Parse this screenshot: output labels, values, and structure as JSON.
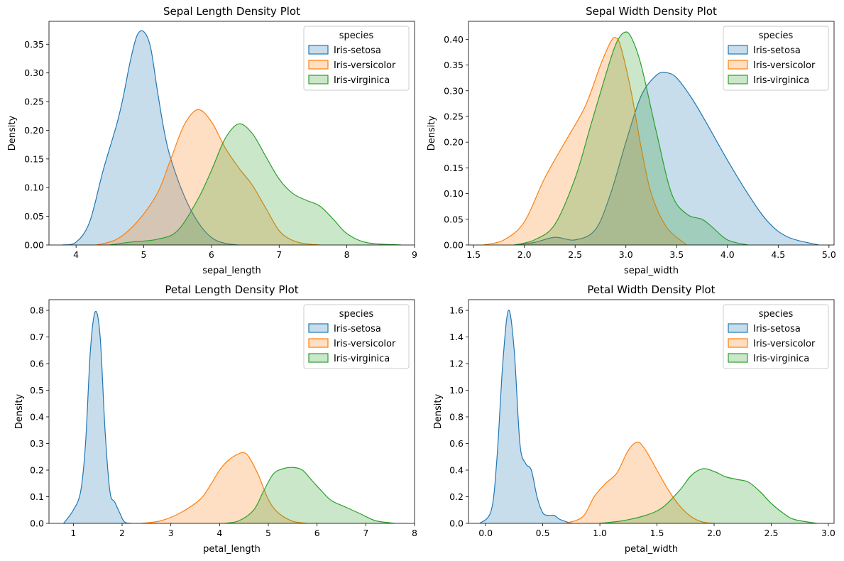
{
  "legend_title": "species",
  "chart_data": [
    {
      "type": "area",
      "title": "Sepal Length Density Plot",
      "xlabel": "sepal_length",
      "ylabel": "Density",
      "xlim": [
        3.6,
        9.0
      ],
      "ylim": [
        0,
        0.39
      ],
      "xticks": [
        "4",
        "5",
        "6",
        "7",
        "8",
        "9"
      ],
      "yticks": [
        "0.00",
        "0.05",
        "0.10",
        "0.15",
        "0.20",
        "0.25",
        "0.30",
        "0.35"
      ],
      "legend": "top-right",
      "grid": false,
      "series": [
        {
          "name": "Iris-setosa",
          "color": "#1f77b4",
          "x": [
            3.8,
            4.0,
            4.2,
            4.4,
            4.6,
            4.7,
            4.8,
            4.9,
            5.0,
            5.1,
            5.2,
            5.3,
            5.4,
            5.6,
            5.8,
            6.0,
            6.2,
            6.4
          ],
          "y": [
            0.0,
            0.005,
            0.04,
            0.13,
            0.21,
            0.26,
            0.32,
            0.365,
            0.372,
            0.345,
            0.27,
            0.2,
            0.15,
            0.085,
            0.04,
            0.013,
            0.003,
            0.0
          ]
        },
        {
          "name": "Iris-versicolor",
          "color": "#ff7f0e",
          "x": [
            4.3,
            4.6,
            4.9,
            5.2,
            5.4,
            5.6,
            5.8,
            6.0,
            6.2,
            6.4,
            6.6,
            6.8,
            7.0,
            7.2,
            7.4,
            7.6
          ],
          "y": [
            0.0,
            0.01,
            0.04,
            0.09,
            0.15,
            0.21,
            0.236,
            0.215,
            0.17,
            0.135,
            0.105,
            0.065,
            0.025,
            0.008,
            0.002,
            0.0
          ]
        },
        {
          "name": "Iris-virginica",
          "color": "#2ca02c",
          "x": [
            4.5,
            4.8,
            5.2,
            5.5,
            5.8,
            6.0,
            6.2,
            6.4,
            6.6,
            6.8,
            7.0,
            7.2,
            7.4,
            7.6,
            7.8,
            8.0,
            8.3,
            8.8
          ],
          "y": [
            0.0,
            0.005,
            0.01,
            0.025,
            0.08,
            0.13,
            0.185,
            0.211,
            0.195,
            0.155,
            0.115,
            0.09,
            0.078,
            0.068,
            0.045,
            0.02,
            0.004,
            0.0
          ]
        }
      ]
    },
    {
      "type": "area",
      "title": "Sepal Width Density Plot",
      "xlabel": "sepal_width",
      "ylabel": "Density",
      "xlim": [
        1.45,
        5.05
      ],
      "ylim": [
        0,
        0.435
      ],
      "xticks": [
        "1.5",
        "2.0",
        "2.5",
        "3.0",
        "3.5",
        "4.0",
        "4.5",
        "5.0"
      ],
      "yticks": [
        "0.00",
        "0.05",
        "0.10",
        "0.15",
        "0.20",
        "0.25",
        "0.30",
        "0.35",
        "0.40"
      ],
      "legend": "top-right",
      "grid": false,
      "series": [
        {
          "name": "Iris-setosa",
          "color": "#1f77b4",
          "x": [
            1.9,
            2.1,
            2.3,
            2.5,
            2.7,
            2.85,
            3.0,
            3.15,
            3.3,
            3.4,
            3.5,
            3.65,
            3.8,
            4.0,
            4.2,
            4.4,
            4.6,
            4.9
          ],
          "y": [
            0.0,
            0.005,
            0.015,
            0.01,
            0.03,
            0.1,
            0.2,
            0.29,
            0.33,
            0.335,
            0.325,
            0.285,
            0.235,
            0.165,
            0.1,
            0.045,
            0.015,
            0.0
          ]
        },
        {
          "name": "Iris-versicolor",
          "color": "#ff7f0e",
          "x": [
            1.6,
            1.8,
            2.0,
            2.2,
            2.4,
            2.6,
            2.75,
            2.85,
            2.9,
            2.95,
            3.05,
            3.15,
            3.25,
            3.4,
            3.6
          ],
          "y": [
            0.0,
            0.01,
            0.045,
            0.13,
            0.2,
            0.27,
            0.35,
            0.395,
            0.403,
            0.385,
            0.3,
            0.19,
            0.1,
            0.035,
            0.0
          ]
        },
        {
          "name": "Iris-virginica",
          "color": "#2ca02c",
          "x": [
            1.9,
            2.1,
            2.3,
            2.5,
            2.65,
            2.8,
            2.9,
            2.98,
            3.05,
            3.15,
            3.3,
            3.45,
            3.6,
            3.75,
            3.85,
            4.0,
            4.2
          ],
          "y": [
            0.0,
            0.01,
            0.04,
            0.13,
            0.23,
            0.33,
            0.39,
            0.413,
            0.405,
            0.35,
            0.22,
            0.1,
            0.06,
            0.05,
            0.035,
            0.01,
            0.0
          ]
        }
      ]
    },
    {
      "type": "area",
      "title": "Petal Length Density Plot",
      "xlabel": "petal_length",
      "ylabel": "Density",
      "xlim": [
        0.5,
        8.0
      ],
      "ylim": [
        0,
        0.84
      ],
      "xticks": [
        "1",
        "2",
        "3",
        "4",
        "5",
        "6",
        "7",
        "8"
      ],
      "yticks": [
        "0.0",
        "0.1",
        "0.2",
        "0.3",
        "0.4",
        "0.5",
        "0.6",
        "0.7",
        "0.8"
      ],
      "legend": "top-right",
      "grid": false,
      "series": [
        {
          "name": "Iris-setosa",
          "color": "#1f77b4",
          "x": [
            0.8,
            1.0,
            1.15,
            1.25,
            1.35,
            1.45,
            1.55,
            1.65,
            1.75,
            1.85,
            1.95,
            2.05,
            2.2
          ],
          "y": [
            0.0,
            0.05,
            0.12,
            0.3,
            0.65,
            0.795,
            0.7,
            0.35,
            0.12,
            0.08,
            0.04,
            0.005,
            0.0
          ]
        },
        {
          "name": "Iris-versicolor",
          "color": "#ff7f0e",
          "x": [
            2.4,
            2.8,
            3.2,
            3.6,
            3.8,
            4.0,
            4.2,
            4.4,
            4.5,
            4.6,
            4.8,
            5.0,
            5.2,
            5.5,
            5.8
          ],
          "y": [
            0.0,
            0.01,
            0.04,
            0.09,
            0.14,
            0.2,
            0.24,
            0.262,
            0.265,
            0.25,
            0.18,
            0.09,
            0.04,
            0.008,
            0.0
          ]
        },
        {
          "name": "Iris-virginica",
          "color": "#2ca02c",
          "x": [
            4.1,
            4.4,
            4.7,
            4.9,
            5.1,
            5.3,
            5.5,
            5.7,
            5.9,
            6.1,
            6.3,
            6.6,
            6.9,
            7.2,
            7.6
          ],
          "y": [
            0.0,
            0.01,
            0.05,
            0.12,
            0.185,
            0.205,
            0.21,
            0.2,
            0.16,
            0.12,
            0.085,
            0.06,
            0.035,
            0.01,
            0.0
          ]
        }
      ]
    },
    {
      "type": "area",
      "title": "Petal Width Density Plot",
      "xlabel": "petal_width",
      "ylabel": "Density",
      "xlim": [
        -0.15,
        3.05
      ],
      "ylim": [
        0,
        1.68
      ],
      "xticks": [
        "0.0",
        "0.5",
        "1.0",
        "1.5",
        "2.0",
        "2.5",
        "3.0"
      ],
      "yticks": [
        "0.0",
        "0.2",
        "0.4",
        "0.6",
        "0.8",
        "1.0",
        "1.2",
        "1.4",
        "1.6"
      ],
      "legend": "top-right",
      "grid": false,
      "series": [
        {
          "name": "Iris-setosa",
          "color": "#1f77b4",
          "x": [
            -0.05,
            0.05,
            0.1,
            0.15,
            0.2,
            0.25,
            0.3,
            0.35,
            0.4,
            0.45,
            0.5,
            0.55,
            0.6,
            0.65,
            0.75
          ],
          "y": [
            0.0,
            0.1,
            0.5,
            1.2,
            1.6,
            1.3,
            0.6,
            0.45,
            0.4,
            0.2,
            0.08,
            0.06,
            0.06,
            0.03,
            0.0
          ]
        },
        {
          "name": "Iris-versicolor",
          "color": "#ff7f0e",
          "x": [
            0.7,
            0.85,
            0.95,
            1.05,
            1.15,
            1.25,
            1.33,
            1.4,
            1.5,
            1.6,
            1.7,
            1.8,
            1.9,
            2.0
          ],
          "y": [
            0.0,
            0.05,
            0.2,
            0.3,
            0.38,
            0.55,
            0.61,
            0.55,
            0.4,
            0.25,
            0.13,
            0.05,
            0.01,
            0.0
          ]
        },
        {
          "name": "Iris-virginica",
          "color": "#2ca02c",
          "x": [
            1.0,
            1.2,
            1.4,
            1.55,
            1.7,
            1.8,
            1.9,
            2.0,
            2.1,
            2.2,
            2.3,
            2.4,
            2.5,
            2.6,
            2.7,
            2.9
          ],
          "y": [
            0.0,
            0.02,
            0.06,
            0.12,
            0.25,
            0.36,
            0.41,
            0.39,
            0.35,
            0.33,
            0.31,
            0.24,
            0.15,
            0.08,
            0.03,
            0.0
          ]
        }
      ]
    }
  ]
}
